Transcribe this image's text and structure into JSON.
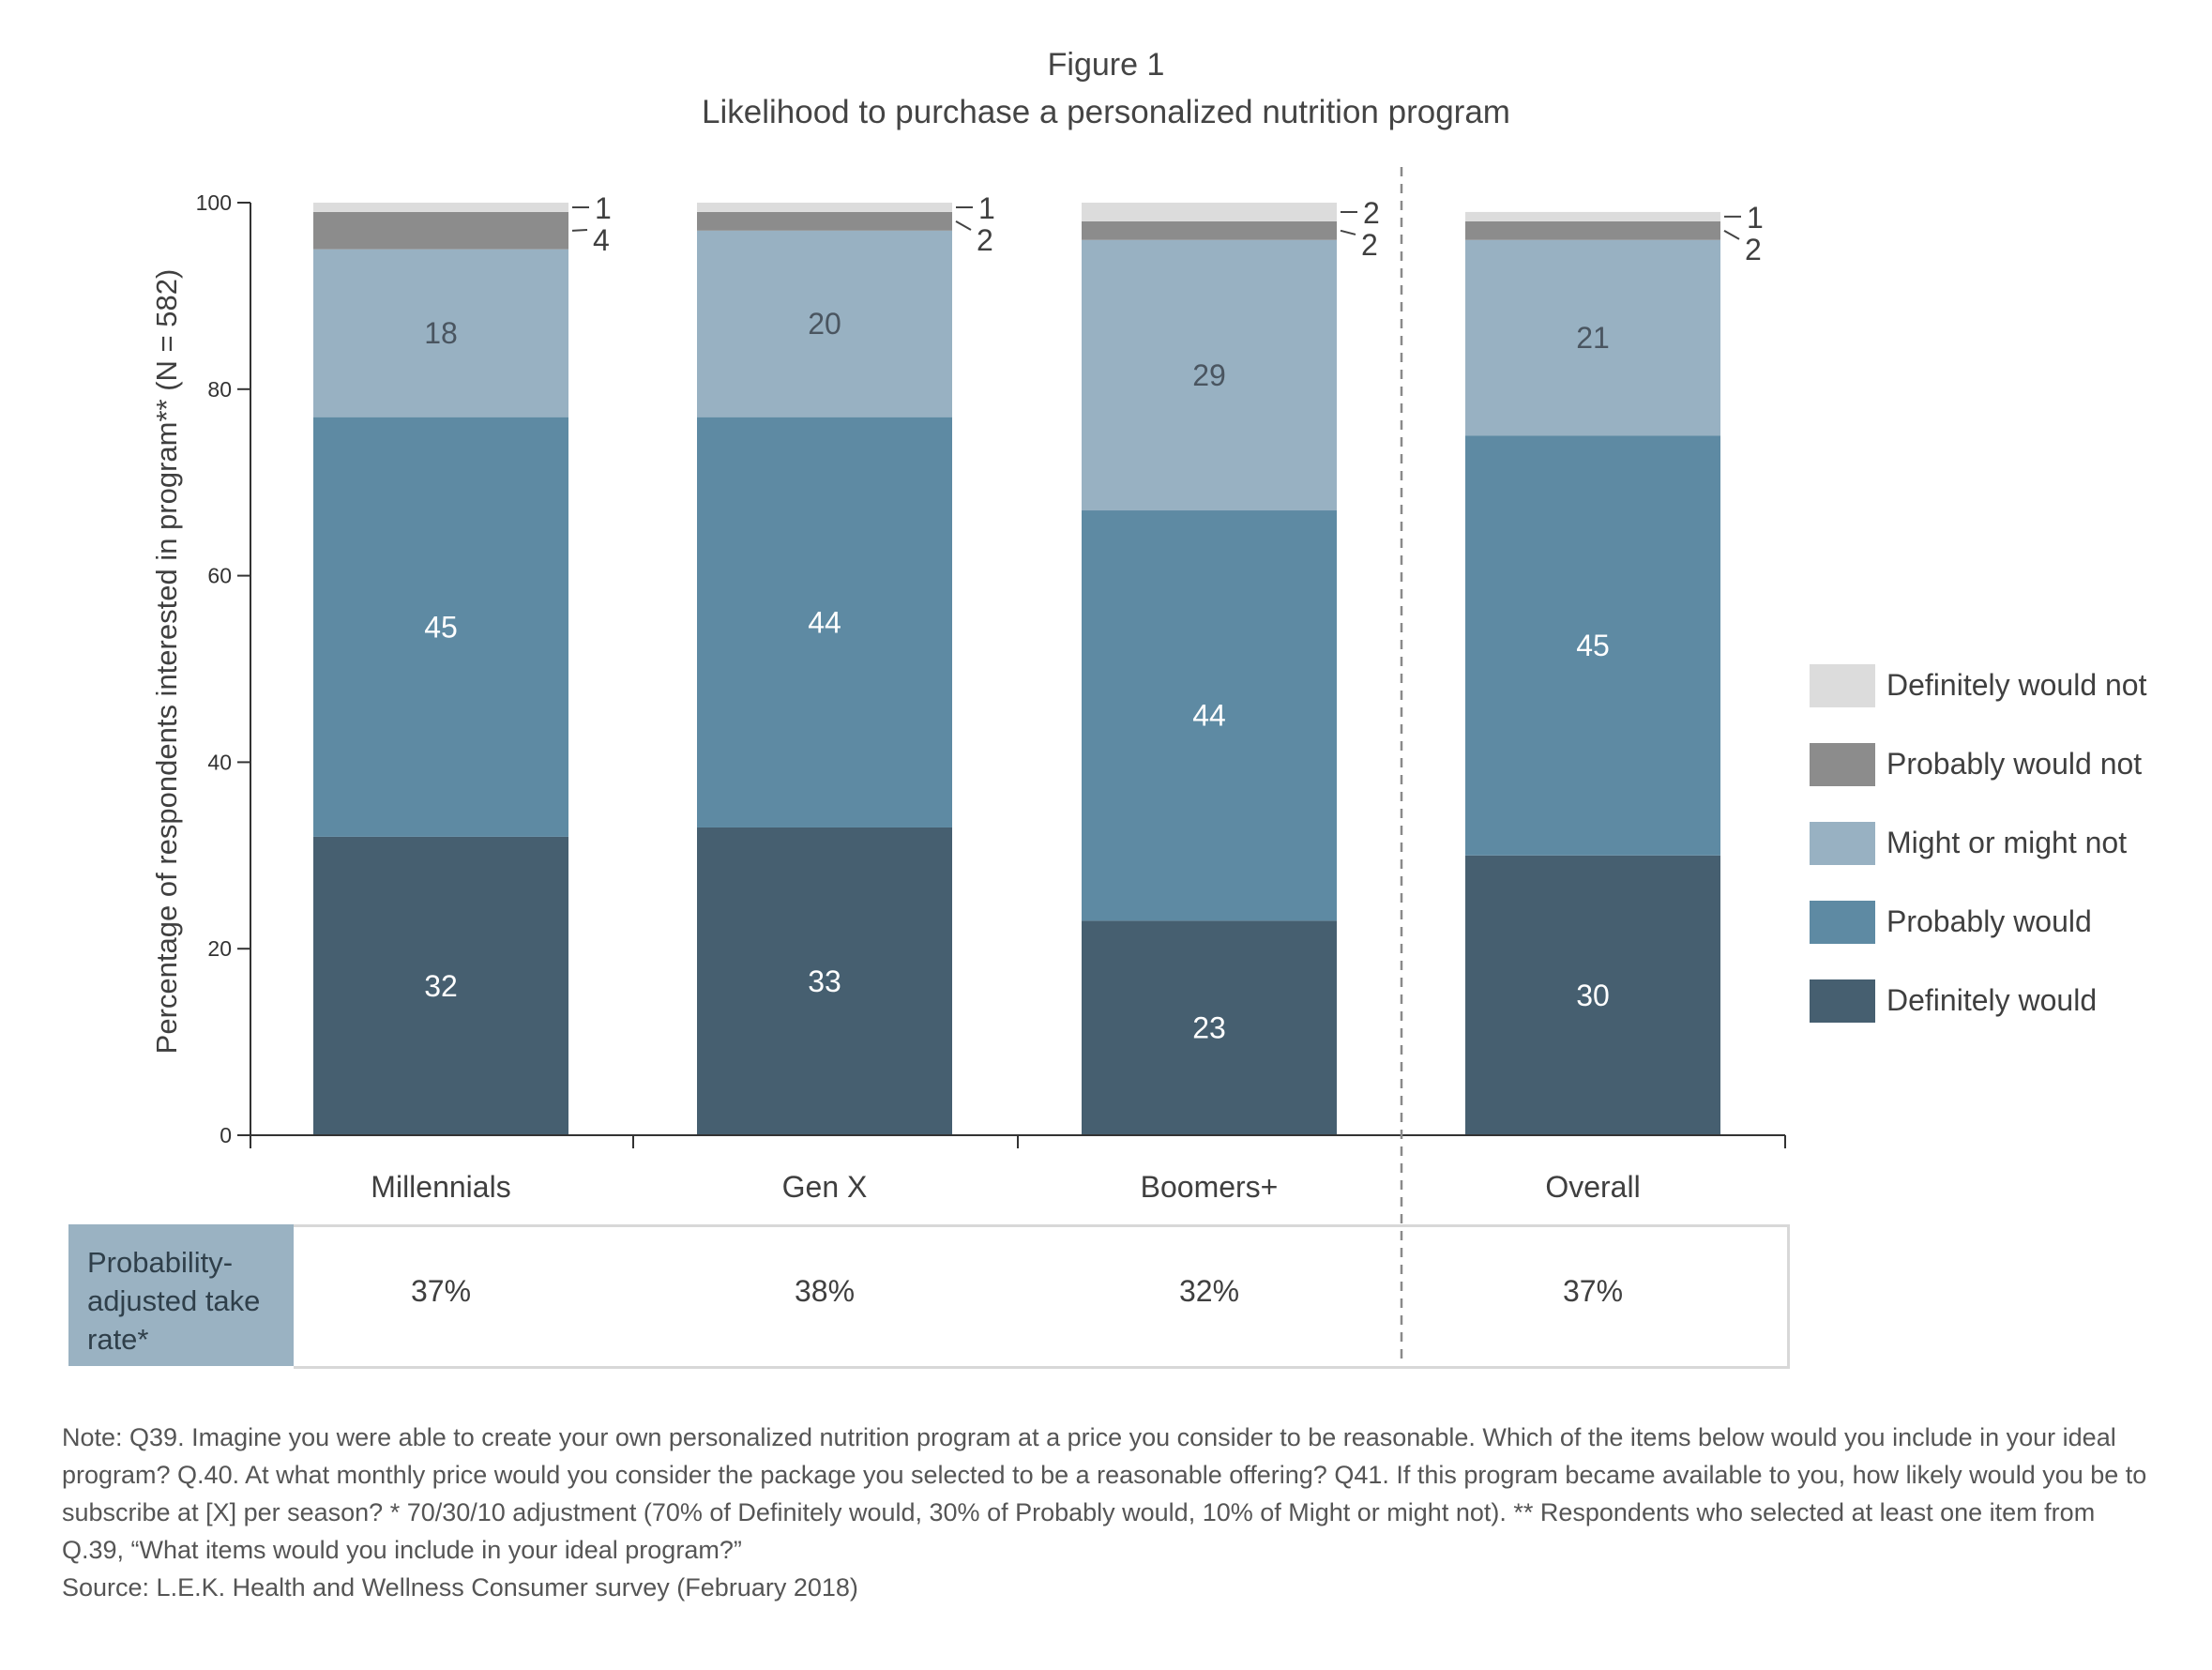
{
  "figure": {
    "label": "Figure 1",
    "title": "Likelihood to purchase a personalized nutrition program"
  },
  "chart_data": {
    "type": "bar",
    "stacked": true,
    "title": "Likelihood to purchase a personalized nutrition program",
    "ylabel": "Percentage of respondents interested in program** (N = 582)",
    "xlabel": "",
    "ylim": [
      0,
      100
    ],
    "yticks": [
      0,
      20,
      40,
      60,
      80,
      100
    ],
    "categories": [
      "Millennials",
      "Gen X",
      "Boomers+",
      "Overall"
    ],
    "separator_before": "Overall",
    "series": [
      {
        "name": "Definitely would",
        "color": "#465f70",
        "values": [
          32,
          33,
          23,
          30
        ],
        "labels": [
          "32",
          "33",
          "23",
          "30"
        ]
      },
      {
        "name": "Probably would",
        "color": "#5e8aa3",
        "values": [
          45,
          44,
          44,
          45
        ],
        "labels": [
          "45",
          "44",
          "44",
          "45"
        ]
      },
      {
        "name": "Might or might not",
        "color": "#98b1c2",
        "values": [
          18,
          20,
          29,
          21
        ],
        "labels": [
          "18",
          "20",
          "29",
          "21"
        ]
      },
      {
        "name": "Probably would not",
        "color": "#8c8c8c",
        "values": [
          4,
          2,
          2,
          2
        ],
        "labels": [
          "4",
          "2",
          "2",
          "2"
        ]
      },
      {
        "name": "Definitely would not",
        "color": "#dcdcdc",
        "values": [
          1,
          1,
          2,
          1
        ],
        "labels": [
          "1",
          "1",
          "2",
          "1"
        ]
      }
    ],
    "legend": {
      "position": "right",
      "order": [
        "Definitely would not",
        "Probably would not",
        "Might or might not",
        "Probably would",
        "Definitely would"
      ]
    },
    "grid": false
  },
  "take_rate": {
    "label": "Probability-adjusted take rate*",
    "label_lines": [
      "Probability-",
      "adjusted take",
      "rate*"
    ],
    "values": [
      "37%",
      "38%",
      "32%",
      "37%"
    ]
  },
  "notes": {
    "note": "Note: Q39. Imagine you were able to create your own personalized nutrition program at a price you consider to be reasonable. Which of the items below would you include in your ideal program? Q.40. At what monthly price would you consider the package you selected to be a reasonable offering? Q41. If this program became available to you, how likely would you be to subscribe at [X] per season? * 70/30/10 adjustment (70% of Definitely would, 30% of Probably would, 10% of Might or might not). ** Respondents who selected at least one item from Q.39, “What items would you include in your ideal program?”",
    "source": "Source: L.E.K. Health and Wellness Consumer survey (February 2018)"
  }
}
